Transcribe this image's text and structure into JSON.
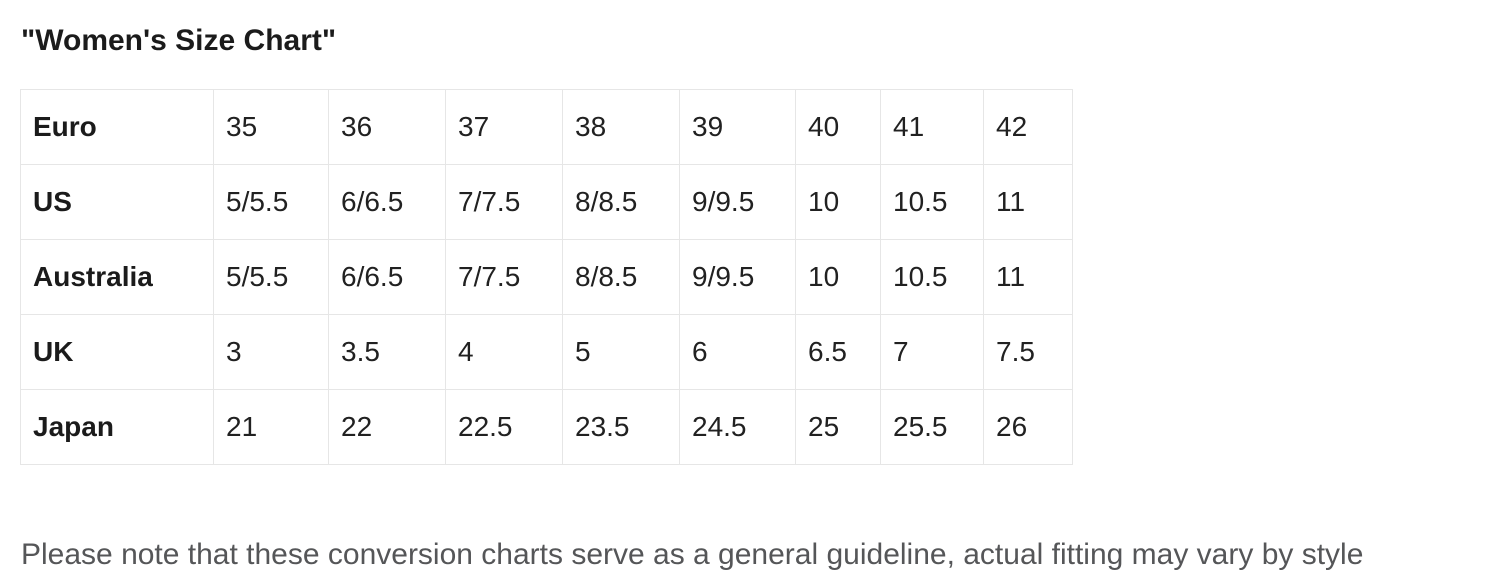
{
  "page": {
    "title": "\"Women's Size Chart\"",
    "note": "Please note that these conversion charts serve as a general guideline, actual fitting may vary by style"
  },
  "size_chart": {
    "type": "table",
    "rows": [
      {
        "label": "Euro",
        "values": [
          "35",
          "36",
          "37",
          "38",
          "39",
          "40",
          "41",
          "42"
        ]
      },
      {
        "label": "US",
        "values": [
          "5/5.5",
          "6/6.5",
          "7/7.5",
          "8/8.5",
          "9/9.5",
          "10",
          "10.5",
          "11"
        ]
      },
      {
        "label": "Australia",
        "values": [
          "5/5.5",
          "6/6.5",
          "7/7.5",
          "8/8.5",
          "9/9.5",
          "10",
          "10.5",
          "11"
        ]
      },
      {
        "label": "UK",
        "values": [
          "3",
          "3.5",
          "4",
          "5",
          "6",
          "6.5",
          "7",
          "7.5"
        ]
      },
      {
        "label": "Japan",
        "values": [
          "21",
          "22",
          "22.5",
          "23.5",
          "24.5",
          "25",
          "25.5",
          "26"
        ]
      }
    ]
  },
  "colors": {
    "background": "#ffffff",
    "title_text": "#1b1b1b",
    "table_text": "#212121",
    "table_border": "#e6e6e6",
    "note_text": "#555658"
  }
}
